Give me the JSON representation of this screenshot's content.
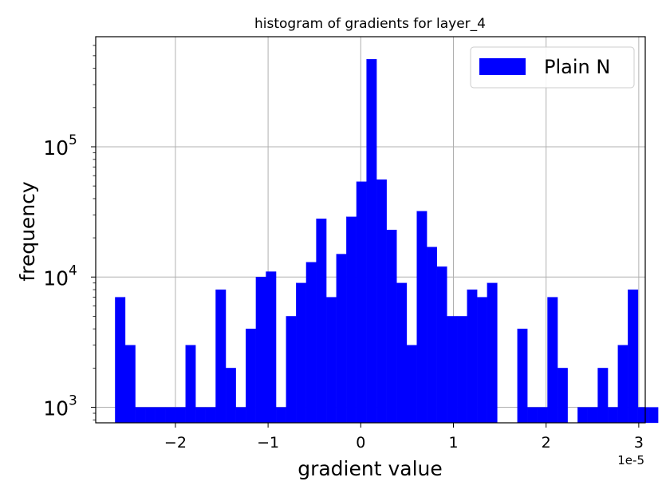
{
  "chart_data": {
    "type": "bar",
    "title": "histogram of gradients for layer_4",
    "xlabel": "gradient value",
    "ylabel": "frequency",
    "x_offset_label": "1e-5",
    "x_scale": 1e-05,
    "y_scale": "log",
    "xlim": [
      -2.86,
      3.07
    ],
    "ylim": [
      760,
      700000
    ],
    "grid": true,
    "legend_position": "top-right",
    "x_ticks": [
      {
        "value": -2,
        "label": "−2"
      },
      {
        "value": -1,
        "label": "−1"
      },
      {
        "value": 0,
        "label": "0"
      },
      {
        "value": 1,
        "label": "1"
      },
      {
        "value": 2,
        "label": "2"
      },
      {
        "value": 3,
        "label": "3"
      }
    ],
    "y_ticks": [
      {
        "value": 1000,
        "base": "10",
        "exp": "3"
      },
      {
        "value": 10000,
        "base": "10",
        "exp": "4"
      },
      {
        "value": 100000,
        "base": "10",
        "exp": "5"
      }
    ],
    "bin_start": -2.65,
    "bin_width": 0.1085,
    "series": [
      {
        "name": "Plain N",
        "color": "#0000ff",
        "values": [
          7000,
          3000,
          1000,
          1000,
          1000,
          1000,
          1000,
          3000,
          1000,
          1000,
          8000,
          2000,
          1000,
          4000,
          10000,
          11000,
          1000,
          5000,
          9000,
          13000,
          28000,
          7000,
          15000,
          29000,
          54000,
          470000,
          56000,
          23000,
          9000,
          3000,
          32000,
          17000,
          12000,
          5000,
          5000,
          8000,
          7000,
          9000,
          0,
          0,
          4000,
          1000,
          1000,
          7000,
          2000,
          0,
          1000,
          1000,
          2000,
          1000,
          3000,
          8000,
          1000,
          1000
        ]
      }
    ]
  }
}
